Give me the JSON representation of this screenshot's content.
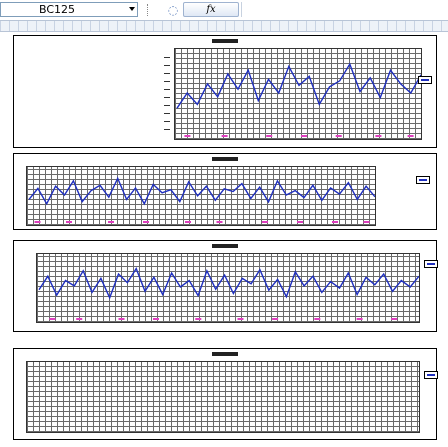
{
  "formula_bar": {
    "name_box_value": "BC125",
    "cancel_icon": "cancel-icon",
    "fx_label": "fx",
    "formula_value": ""
  },
  "colors": {
    "series_line": "#1f2fbf",
    "marker": "#e040c0",
    "grid": "#6b6b6b"
  },
  "charts": [
    {
      "title": "",
      "series": [
        {
          "name": "",
          "values": [
            0.3,
            0.5,
            0.35,
            0.62,
            0.45,
            0.75,
            0.55,
            0.8,
            0.4,
            0.68,
            0.5,
            0.85,
            0.6,
            0.72,
            0.35,
            0.58,
            0.66,
            0.88,
            0.52,
            0.7,
            0.44,
            0.8,
            0.62,
            0.5,
            0.74
          ]
        }
      ],
      "markers": [
        0.05,
        0.2,
        0.38,
        0.52,
        0.66,
        0.82,
        0.95
      ]
    },
    {
      "title": "",
      "series": [
        {
          "name": "",
          "values": [
            0.4,
            0.65,
            0.3,
            0.7,
            0.5,
            0.82,
            0.35,
            0.6,
            0.72,
            0.45,
            0.88,
            0.4,
            0.66,
            0.3,
            0.74,
            0.55,
            0.62,
            0.35,
            0.8,
            0.48,
            0.7,
            0.38,
            0.64,
            0.58,
            0.76,
            0.42,
            0.68,
            0.34,
            0.82,
            0.5,
            0.6,
            0.44,
            0.72,
            0.38,
            0.66,
            0.52,
            0.78,
            0.4,
            0.7,
            0.46
          ]
        }
      ],
      "markers": [
        0.03,
        0.12,
        0.24,
        0.34,
        0.46,
        0.55,
        0.68,
        0.78,
        0.88,
        0.97
      ]
    },
    {
      "title": "",
      "series": [
        {
          "name": "",
          "values": [
            0.45,
            0.7,
            0.35,
            0.62,
            0.52,
            0.8,
            0.4,
            0.66,
            0.3,
            0.74,
            0.58,
            0.84,
            0.42,
            0.68,
            0.36,
            0.76,
            0.5,
            0.62,
            0.34,
            0.8,
            0.46,
            0.72,
            0.38,
            0.66,
            0.56,
            0.82,
            0.44,
            0.64,
            0.32,
            0.78,
            0.52,
            0.7,
            0.4,
            0.6,
            0.48,
            0.76,
            0.36,
            0.68,
            0.54,
            0.74,
            0.42,
            0.62,
            0.5,
            0.7
          ]
        }
      ],
      "markers": [
        0.04,
        0.11,
        0.22,
        0.31,
        0.42,
        0.53,
        0.62,
        0.73,
        0.84,
        0.93
      ]
    },
    {
      "title": "",
      "series": [],
      "markers": []
    }
  ]
}
